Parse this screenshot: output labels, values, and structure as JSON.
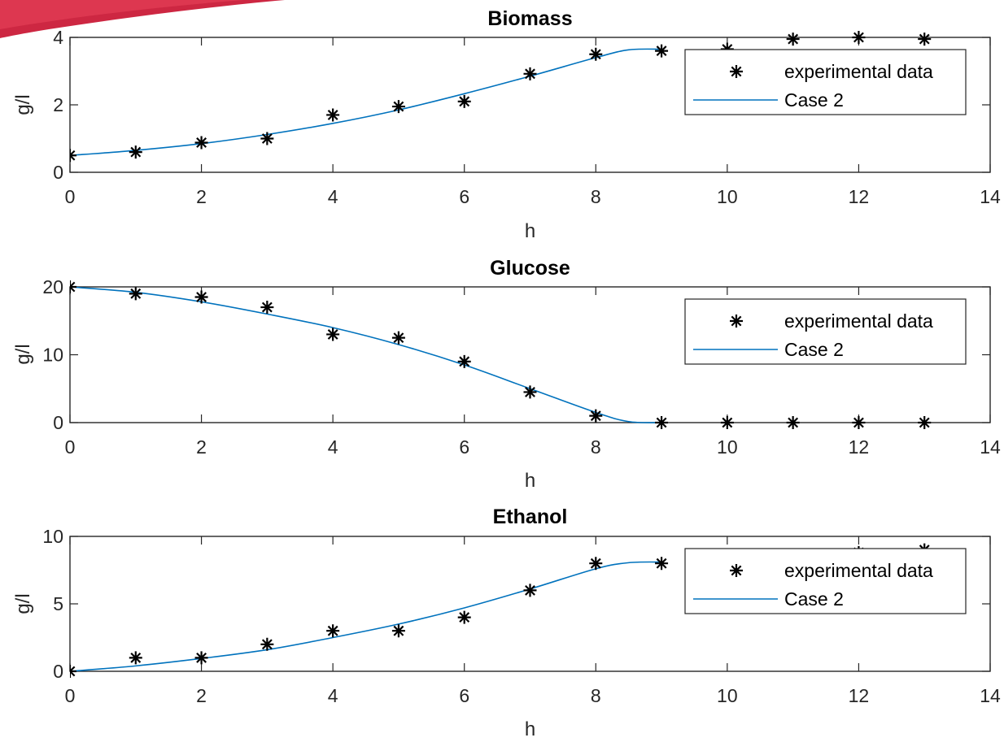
{
  "colors": {
    "model_line": "#0072BD",
    "markers": "#000000",
    "axes": "#262626",
    "decoration": "#C8102E"
  },
  "chart_data": [
    {
      "type": "line",
      "title": "Biomass",
      "xlabel": "h",
      "ylabel": "g/l",
      "xlim": [
        0,
        14
      ],
      "ylim": [
        0,
        4
      ],
      "xticks": [
        0,
        2,
        4,
        6,
        8,
        10,
        12,
        14
      ],
      "yticks": [
        0,
        2,
        4
      ],
      "legend": {
        "position": "top-right",
        "entries": [
          "experimental data",
          "Case 2"
        ]
      },
      "series": [
        {
          "name": "experimental data",
          "style": "markers",
          "x": [
            0,
            1,
            2,
            3,
            4,
            5,
            6,
            7,
            8,
            9,
            10,
            11,
            12,
            13
          ],
          "y": [
            0.5,
            0.6,
            0.88,
            1.0,
            1.7,
            1.95,
            2.1,
            2.92,
            3.5,
            3.6,
            3.65,
            3.95,
            4.0,
            3.95
          ]
        },
        {
          "name": "Case 2",
          "style": "line",
          "x": [
            0,
            1,
            2,
            3,
            4,
            5,
            6,
            7,
            8,
            8.5,
            9
          ],
          "y": [
            0.5,
            0.65,
            0.85,
            1.12,
            1.45,
            1.85,
            2.33,
            2.85,
            3.4,
            3.63,
            3.65
          ]
        }
      ]
    },
    {
      "type": "line",
      "title": "Glucose",
      "xlabel": "h",
      "ylabel": "g/l",
      "xlim": [
        0,
        14
      ],
      "ylim": [
        0,
        20
      ],
      "xticks": [
        0,
        2,
        4,
        6,
        8,
        10,
        12,
        14
      ],
      "yticks": [
        0,
        10,
        20
      ],
      "legend": {
        "position": "top-right",
        "entries": [
          "experimental data",
          "Case 2"
        ]
      },
      "series": [
        {
          "name": "experimental data",
          "style": "markers",
          "x": [
            0,
            1,
            2,
            3,
            4,
            5,
            6,
            7,
            8,
            9,
            10,
            11,
            12,
            13
          ],
          "y": [
            20,
            19,
            18.5,
            17,
            13,
            12.5,
            9,
            4.5,
            1,
            0,
            0,
            0,
            0,
            0
          ]
        },
        {
          "name": "Case 2",
          "style": "line",
          "x": [
            0,
            1,
            2,
            3,
            4,
            5,
            6,
            7,
            8,
            8.5,
            9
          ],
          "y": [
            20,
            19.2,
            17.8,
            16,
            14,
            11.5,
            8.5,
            5,
            1.5,
            0.15,
            0
          ]
        }
      ]
    },
    {
      "type": "line",
      "title": "Ethanol",
      "xlabel": "h",
      "ylabel": "g/l",
      "xlim": [
        0,
        14
      ],
      "ylim": [
        0,
        10
      ],
      "xticks": [
        0,
        2,
        4,
        6,
        8,
        10,
        12,
        14
      ],
      "yticks": [
        0,
        5,
        10
      ],
      "legend": {
        "position": "top-right",
        "entries": [
          "experimental data",
          "Case 2"
        ]
      },
      "series": [
        {
          "name": "experimental data",
          "style": "markers",
          "x": [
            0,
            1,
            2,
            3,
            4,
            5,
            6,
            7,
            8,
            9,
            10,
            11,
            12,
            13
          ],
          "y": [
            0,
            1,
            1,
            2,
            3,
            3,
            4,
            6,
            8,
            8,
            8.3,
            8.6,
            8.8,
            9
          ]
        },
        {
          "name": "Case 2",
          "style": "line",
          "x": [
            0,
            1,
            2,
            3,
            4,
            5,
            6,
            7,
            8,
            8.5,
            9
          ],
          "y": [
            0,
            0.4,
            0.95,
            1.6,
            2.5,
            3.5,
            4.7,
            6.1,
            7.6,
            8.05,
            8.1
          ]
        }
      ]
    }
  ]
}
